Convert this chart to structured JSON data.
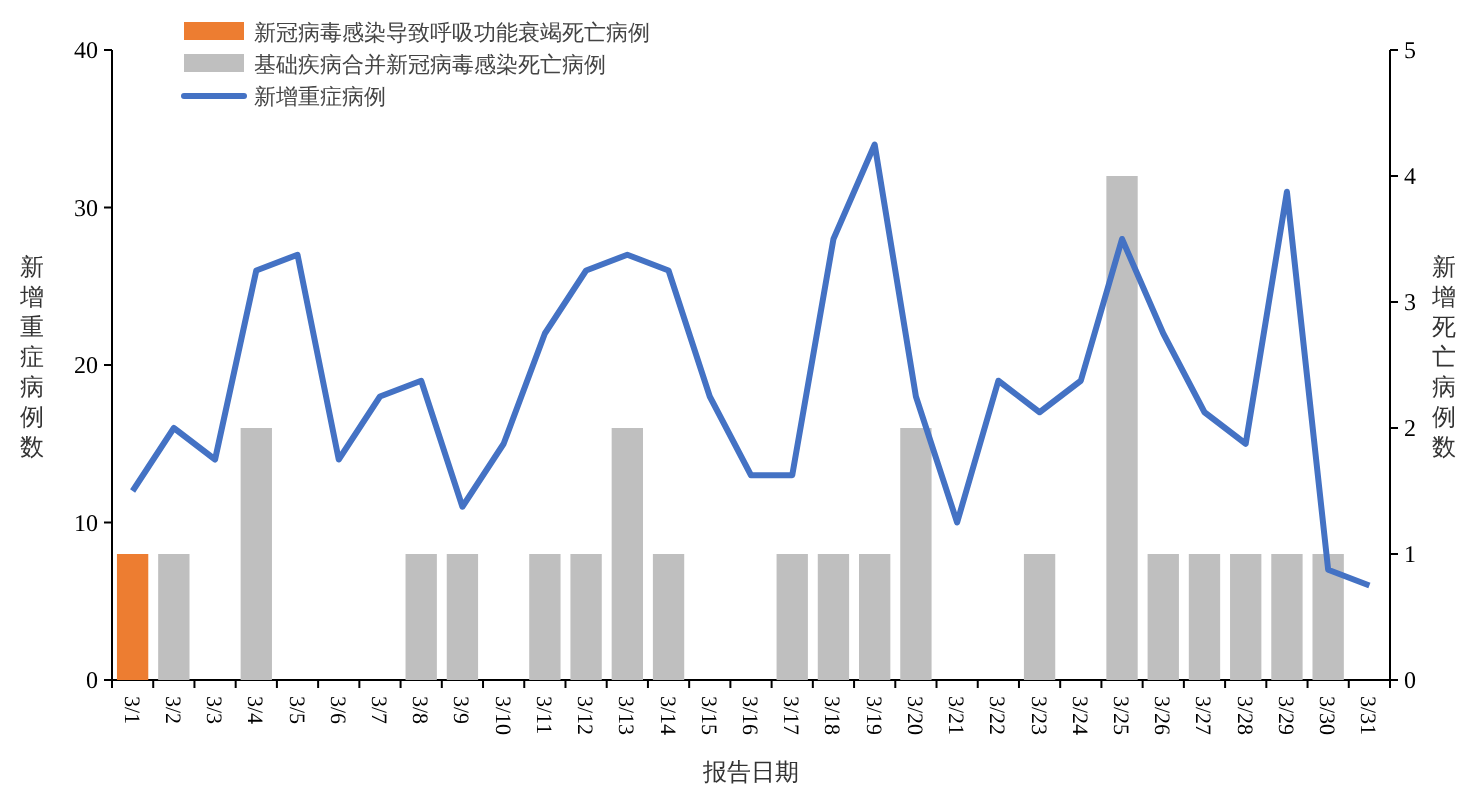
{
  "chart_data": {
    "type": "bar",
    "stacked": true,
    "legend": "top left",
    "grid": false,
    "xlabel": "报告日期",
    "ylabel": "新增重症病例数",
    "y2label": "新增死亡病例数",
    "categories": [
      "3/1",
      "3/2",
      "3/3",
      "3/4",
      "3/5",
      "3/6",
      "3/7",
      "3/8",
      "3/9",
      "3/10",
      "3/11",
      "3/12",
      "3/13",
      "3/14",
      "3/15",
      "3/16",
      "3/17",
      "3/18",
      "3/19",
      "3/20",
      "3/21",
      "3/22",
      "3/23",
      "3/24",
      "3/25",
      "3/26",
      "3/27",
      "3/28",
      "3/29",
      "3/30",
      "3/31"
    ],
    "ylim": [
      0,
      40
    ],
    "yticks": [
      0,
      10,
      20,
      30,
      40
    ],
    "y2lim": [
      0,
      5
    ],
    "y2ticks": [
      0,
      1,
      2,
      3,
      4,
      5
    ],
    "series": [
      {
        "name": "新冠病毒感染导致呼吸功能衰竭死亡病例",
        "axis": "y2",
        "color": "#ed7d31",
        "values": [
          1,
          0,
          0,
          0,
          0,
          0,
          0,
          0,
          0,
          0,
          0,
          0,
          0,
          0,
          0,
          0,
          0,
          0,
          0,
          0,
          0,
          0,
          0,
          0,
          0,
          0,
          0,
          0,
          0,
          0,
          0
        ]
      },
      {
        "name": "基础疾病合并新冠病毒感染死亡病例",
        "axis": "y2",
        "color": "#bfbfbf",
        "values": [
          0,
          1,
          0,
          2,
          0,
          0,
          0,
          1,
          1,
          0,
          1,
          1,
          2,
          1,
          0,
          0,
          1,
          1,
          1,
          2,
          0,
          0,
          1,
          0,
          4,
          1,
          1,
          1,
          1,
          1,
          0
        ]
      },
      {
        "name": "新增重症病例",
        "type": "line",
        "axis": "y",
        "color": "#4472c4",
        "values": [
          12,
          16,
          14,
          26,
          27,
          14,
          18,
          19,
          11,
          15,
          22,
          26,
          27,
          26,
          18,
          13,
          13,
          28,
          34,
          18,
          10,
          19,
          17,
          19,
          28,
          22,
          17,
          15,
          31,
          7,
          6
        ]
      }
    ]
  }
}
